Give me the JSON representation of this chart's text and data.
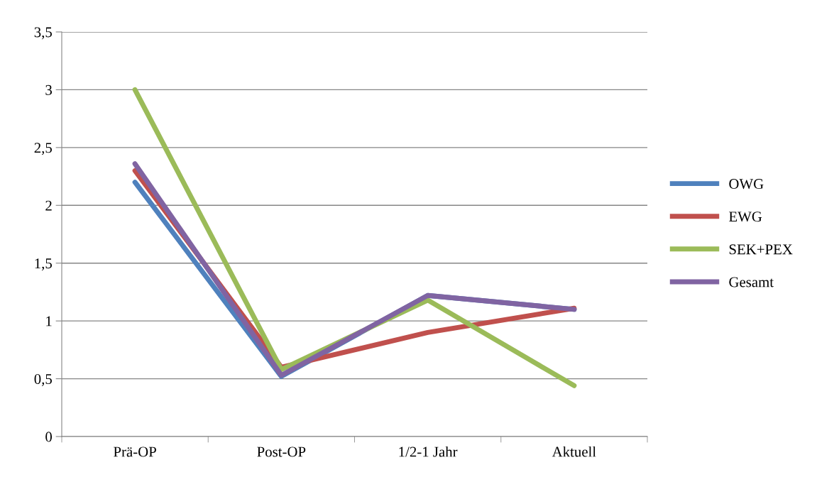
{
  "chart_data": {
    "type": "line",
    "categories": [
      "Prä-OP",
      "Post-OP",
      "1/2-1 Jahr",
      "Aktuell"
    ],
    "series": [
      {
        "name": "OWG",
        "color": "#4f81bd",
        "values": [
          2.2,
          0.52,
          1.22,
          1.1
        ]
      },
      {
        "name": "EWG",
        "color": "#c0504d",
        "values": [
          2.3,
          0.6,
          0.9,
          1.11
        ]
      },
      {
        "name": "SEK+PEX",
        "color": "#9bbb59",
        "values": [
          3.0,
          0.58,
          1.18,
          0.44
        ]
      },
      {
        "name": "Gesamt",
        "color": "#8064a2",
        "values": [
          2.36,
          0.53,
          1.22,
          1.1
        ]
      }
    ],
    "ylim": [
      0,
      3.5
    ],
    "yticks": [
      {
        "value": 0,
        "label": "0"
      },
      {
        "value": 0.5,
        "label": "0,5"
      },
      {
        "value": 1,
        "label": "1"
      },
      {
        "value": 1.5,
        "label": "1,5"
      },
      {
        "value": 2,
        "label": "2"
      },
      {
        "value": 2.5,
        "label": "2,5"
      },
      {
        "value": 3,
        "label": "3"
      },
      {
        "value": 3.5,
        "label": "3,5"
      }
    ],
    "grid": "y",
    "legend": "right",
    "marker": "none",
    "line_style": "solid"
  }
}
